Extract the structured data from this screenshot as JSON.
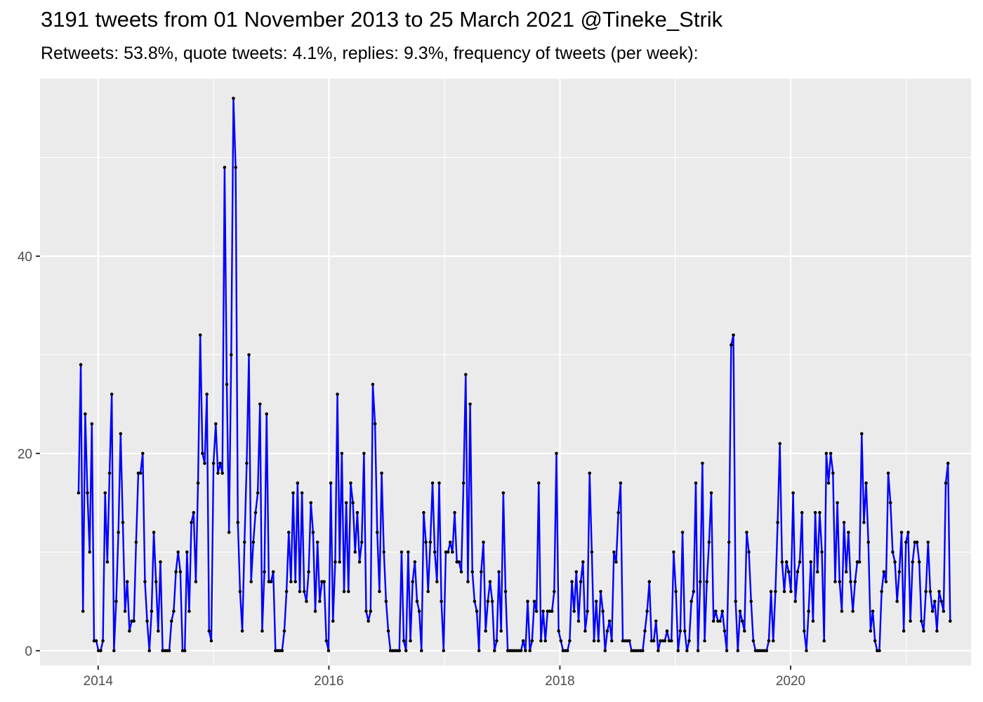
{
  "chart_data": {
    "type": "line",
    "title": "3191 tweets from 01 November 2013 to 25 March 2021 @Tineke_Strik",
    "subtitle": "Retweets: 53.8%, quote tweets: 4.1%, replies: 9.3%, frequency of tweets (per week):",
    "xlabel": "",
    "ylabel": "",
    "x_ticks": [
      "2014",
      "2016",
      "2018",
      "2020"
    ],
    "y_ticks": [
      0,
      20,
      40
    ],
    "xlim": [
      "2013-07-01",
      "2021-07-25"
    ],
    "ylim": [
      -1.5,
      58
    ],
    "grid": true,
    "background": "#ebebeb",
    "line_color": "#0000ff",
    "point_color": "#000000",
    "series": [
      {
        "start_date": "2013-10-31",
        "values": [
          16,
          29,
          4,
          24,
          16,
          10,
          23,
          1,
          1,
          0,
          0,
          1,
          16,
          9,
          18,
          26,
          0,
          5,
          12,
          22,
          13,
          4,
          7,
          2,
          3,
          3,
          11,
          18,
          18,
          20,
          7,
          3,
          0,
          4,
          12,
          7,
          2,
          9,
          0,
          0,
          0,
          0,
          3,
          4,
          8,
          10,
          8,
          0,
          0,
          10,
          4,
          13,
          14,
          7,
          17,
          32,
          20,
          19,
          26,
          2,
          1,
          19,
          23,
          18,
          19,
          18,
          49,
          27,
          12,
          30,
          56,
          49,
          13,
          6,
          2,
          11,
          19,
          30,
          7,
          11,
          14,
          16,
          25,
          2,
          8,
          24,
          7,
          7,
          8,
          0,
          0,
          0,
          0,
          2,
          6,
          12,
          7,
          16,
          7,
          17,
          6,
          16,
          6,
          5,
          8,
          15,
          12,
          4,
          11,
          5,
          7,
          7,
          1,
          0,
          17,
          3,
          9,
          26,
          9,
          20,
          6,
          15,
          6,
          17,
          15,
          10,
          14,
          9,
          11,
          20,
          4,
          3,
          4,
          27,
          23,
          12,
          6,
          18,
          10,
          5,
          2,
          0,
          0,
          0,
          0,
          0,
          10,
          1,
          0,
          10,
          1,
          7,
          9,
          5,
          4,
          0,
          14,
          11,
          6,
          11,
          17,
          10,
          7,
          17,
          5,
          0,
          10,
          10,
          11,
          10,
          14,
          9,
          9,
          8,
          17,
          28,
          7,
          25,
          8,
          5,
          4,
          0,
          8,
          11,
          2,
          5,
          7,
          5,
          0,
          1,
          8,
          2,
          16,
          6,
          0,
          0,
          0,
          0,
          0,
          0,
          0,
          1,
          0,
          5,
          0,
          1,
          5,
          4,
          17,
          1,
          4,
          1,
          4,
          4,
          4,
          6,
          20,
          2,
          1,
          0,
          0,
          0,
          1,
          7,
          4,
          8,
          3,
          7,
          9,
          2,
          4,
          18,
          10,
          1,
          5,
          1,
          6,
          4,
          0,
          2,
          3,
          1,
          10,
          9,
          14,
          17,
          1,
          1,
          1,
          1,
          0,
          0,
          0,
          0,
          0,
          0,
          2,
          4,
          7,
          1,
          1,
          3,
          0,
          1,
          1,
          1,
          2,
          1,
          1,
          10,
          6,
          0,
          2,
          12,
          2,
          0,
          1,
          5,
          6,
          17,
          0,
          7,
          19,
          1,
          7,
          11,
          16,
          3,
          4,
          3,
          3,
          4,
          2,
          0,
          11,
          31,
          32,
          5,
          0,
          4,
          3,
          2,
          12,
          10,
          5,
          1,
          0,
          0,
          0,
          0,
          0,
          0,
          1,
          6,
          1,
          6,
          13,
          21,
          9,
          6,
          9,
          8,
          6,
          16,
          5,
          8,
          9,
          14,
          2,
          0,
          4,
          9,
          3,
          14,
          8,
          14,
          10,
          1,
          20,
          17,
          20,
          18,
          7,
          15,
          7,
          4,
          13,
          8,
          12,
          7,
          4,
          7,
          9,
          9,
          22,
          13,
          17,
          11,
          2,
          4,
          1,
          0,
          0,
          6,
          8,
          7,
          18,
          15,
          10,
          9,
          5,
          8,
          12,
          2,
          11,
          12,
          3,
          9,
          11,
          11,
          9,
          3,
          2,
          6,
          11,
          6,
          4,
          5,
          2,
          6,
          5,
          4,
          17,
          19,
          3
        ]
      }
    ]
  }
}
